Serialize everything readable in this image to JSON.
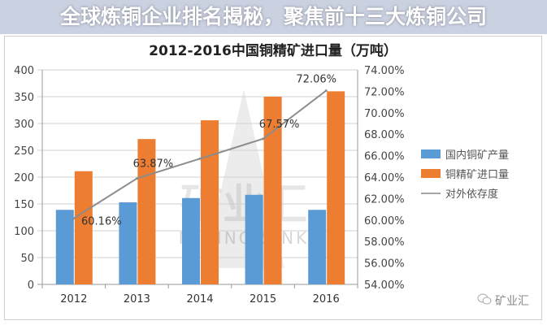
{
  "chart_data": {
    "type": "bar",
    "title": "2012-2016中国铜精矿进口量（万吨）",
    "categories": [
      "2012",
      "2013",
      "2014",
      "2015",
      "2016"
    ],
    "series": [
      {
        "name": "国内铜矿产量",
        "kind": "bar",
        "axis": "left",
        "color": "#5b9bd5",
        "values": [
          139,
          153,
          161,
          167,
          139
        ]
      },
      {
        "name": "铜精矿进口量",
        "kind": "bar",
        "axis": "left",
        "color": "#ed7d31",
        "values": [
          211,
          271,
          306,
          350,
          360
        ]
      },
      {
        "name": "对外依存度",
        "kind": "line",
        "axis": "right",
        "color": "#a5a5a5",
        "values": [
          60.16,
          63.87,
          65.72,
          67.57,
          72.06
        ],
        "labels": [
          "60.16%",
          "63.87%",
          "",
          "67.57%",
          "72.06%"
        ]
      }
    ],
    "ylim": [
      0,
      400
    ],
    "yticks": [
      "0",
      "50",
      "100",
      "150",
      "200",
      "250",
      "300",
      "350",
      "400"
    ],
    "y2lim": [
      54,
      74
    ],
    "y2ticks": [
      "54.00%",
      "56.00%",
      "58.00%",
      "60.00%",
      "62.00%",
      "64.00%",
      "66.00%",
      "68.00%",
      "70.00%",
      "72.00%",
      "74.00%"
    ],
    "grid": true,
    "legend_position": "right"
  },
  "banner": {
    "line1": "全球炼铜企业排名揭秘，聚焦前十三大炼铜",
    "line2": "公司"
  },
  "watermark": {
    "cn": "矿业汇",
    "en": "MINING SINK"
  },
  "credit": {
    "icon": "wechat-icon",
    "text": "矿业汇"
  }
}
